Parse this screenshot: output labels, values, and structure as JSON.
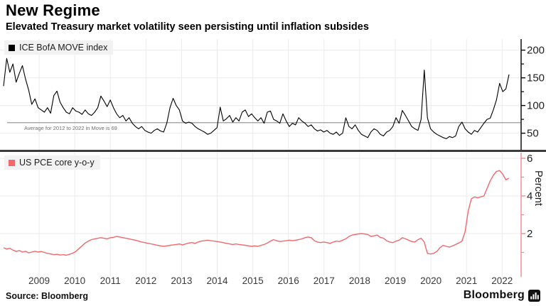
{
  "header": {
    "title": "New Regime",
    "subtitle": "Elevated Treasury market volatility seen persisting until inflation subsides"
  },
  "footer": {
    "source": "Source: Bloomberg",
    "brand": "Bloomberg",
    "brand_logo_icon": "bar-chart-terminal-icon"
  },
  "colors": {
    "move_line": "#000000",
    "pce_line": "#f2686c",
    "pce_axis": "#f08a8d",
    "average_line": "#999999",
    "gridline": "#ebebeb",
    "separator": "#3b3b3b",
    "legend_bg": "#f2f2f2"
  },
  "x_axis": {
    "years": [
      "2009",
      "2010",
      "2011",
      "2012",
      "2013",
      "2014",
      "2015",
      "2016",
      "2017",
      "2018",
      "2019",
      "2020",
      "2021",
      "2022"
    ]
  },
  "chart_data": [
    {
      "type": "line",
      "panel": "top",
      "title": "ICE BofA MOVE index",
      "legend": "ICE BofA MOVE index",
      "color": "#000000",
      "x_range_years": [
        2009,
        2022.5
      ],
      "y_ticks": [
        50,
        100,
        150,
        200
      ],
      "y_minor_ticks": [
        75,
        125,
        175
      ],
      "ylim": [
        20,
        220
      ],
      "grid": true,
      "legend_position": "top-left",
      "annotation": {
        "value": 69,
        "label": "Average for 2012 to 2022 in Move is 69"
      },
      "values": [
        135,
        185,
        160,
        175,
        142,
        158,
        172,
        148,
        128,
        102,
        112,
        96,
        92,
        88,
        96,
        86,
        118,
        126,
        106,
        96,
        88,
        85,
        96,
        90,
        88,
        84,
        92,
        85,
        82,
        88,
        96,
        117,
        108,
        98,
        110,
        96,
        85,
        78,
        82,
        72,
        78,
        68,
        62,
        58,
        62,
        55,
        52,
        50,
        55,
        58,
        54,
        52,
        68,
        96,
        113,
        100,
        92,
        72,
        68,
        70,
        68,
        62,
        58,
        55,
        52,
        48,
        50,
        55,
        60,
        97,
        72,
        76,
        82,
        70,
        78,
        72,
        88,
        92,
        80,
        85,
        78,
        72,
        78,
        68,
        88,
        90,
        75,
        72,
        68,
        85,
        72,
        62,
        68,
        65,
        78,
        72,
        68,
        62,
        65,
        58,
        54,
        56,
        52,
        55,
        50,
        48,
        52,
        46,
        50,
        78,
        62,
        58,
        65,
        55,
        48,
        45,
        42,
        52,
        58,
        55,
        48,
        45,
        52,
        55,
        62,
        78,
        68,
        91,
        82,
        72,
        62,
        58,
        55,
        75,
        164,
        78,
        58,
        52,
        48,
        45,
        42,
        40,
        44,
        42,
        45,
        62,
        70,
        58,
        52,
        48,
        55,
        52,
        60,
        68,
        75,
        77,
        92,
        110,
        140,
        125,
        130,
        156
      ]
    },
    {
      "type": "line",
      "panel": "bottom",
      "title": "US PCE core y-o-y",
      "legend": "US PCE core y-o-y",
      "color": "#f2686c",
      "axis_color": "#f08a8d",
      "ylabel": "Percent",
      "x_range_years": [
        2009,
        2022.5
      ],
      "y_ticks": [
        2,
        4,
        6
      ],
      "y_minor_ticks": [
        1,
        3,
        5
      ],
      "ylim": [
        -0.3,
        6.3
      ],
      "grid": true,
      "legend_position": "top-left",
      "values": [
        1.25,
        1.18,
        1.22,
        1.12,
        1.05,
        1.1,
        1.02,
        1.06,
        0.98,
        1.02,
        1.06,
        1.02,
        1.05,
        1.0,
        0.95,
        0.92,
        0.88,
        0.9,
        0.86,
        0.88,
        0.85,
        0.9,
        0.96,
        1.05,
        1.2,
        1.35,
        1.5,
        1.6,
        1.68,
        1.72,
        1.75,
        1.78,
        1.75,
        1.72,
        1.78,
        1.8,
        1.85,
        1.82,
        1.78,
        1.75,
        1.72,
        1.68,
        1.65,
        1.6,
        1.55,
        1.52,
        1.48,
        1.45,
        1.42,
        1.38,
        1.35,
        1.32,
        1.35,
        1.38,
        1.4,
        1.42,
        1.45,
        1.4,
        1.45,
        1.5,
        1.52,
        1.48,
        1.55,
        1.6,
        1.62,
        1.65,
        1.62,
        1.6,
        1.58,
        1.55,
        1.52,
        1.48,
        1.45,
        1.42,
        1.45,
        1.42,
        1.4,
        1.38,
        1.35,
        1.32,
        1.35,
        1.32,
        1.38,
        1.42,
        1.5,
        1.6,
        1.68,
        1.62,
        1.58,
        1.6,
        1.62,
        1.65,
        1.62,
        1.65,
        1.68,
        1.72,
        1.78,
        1.82,
        1.78,
        1.62,
        1.55,
        1.52,
        1.55,
        1.52,
        1.48,
        1.55,
        1.6,
        1.58,
        1.65,
        1.72,
        1.85,
        1.92,
        1.95,
        1.98,
        2.0,
        1.98,
        1.95,
        1.85,
        1.88,
        1.92,
        1.8,
        1.75,
        1.62,
        1.55,
        1.52,
        1.6,
        1.65,
        1.78,
        1.72,
        1.65,
        1.58,
        1.55,
        1.68,
        1.75,
        1.55,
        0.95,
        0.92,
        0.95,
        1.05,
        1.25,
        1.38,
        1.32,
        1.28,
        1.35,
        1.42,
        1.5,
        1.6,
        2.1,
        3.2,
        3.85,
        3.95,
        3.9,
        3.95,
        4.0,
        4.4,
        4.8,
        5.1,
        5.3,
        5.35,
        5.15,
        4.85,
        4.95
      ]
    }
  ]
}
